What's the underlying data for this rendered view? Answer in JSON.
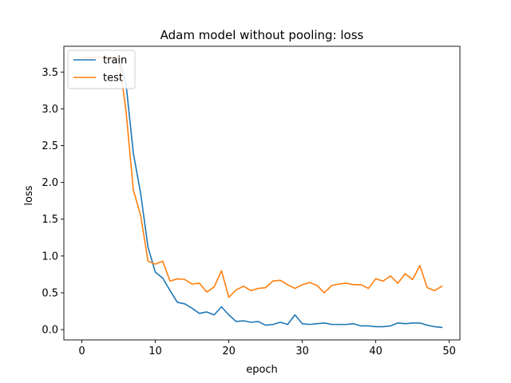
{
  "chart_data": {
    "type": "line",
    "title": "Adam model without pooling: loss",
    "xlabel": "epoch",
    "ylabel": "loss",
    "xlim": [
      -2.45,
      51.45
    ],
    "ylim": [
      -0.14,
      3.85
    ],
    "xticks": [
      0,
      10,
      20,
      30,
      40,
      50
    ],
    "yticks": [
      0.0,
      0.5,
      1.0,
      1.5,
      2.0,
      2.5,
      3.0,
      3.5
    ],
    "ytick_labels": [
      "0.0",
      "0.5",
      "1.0",
      "1.5",
      "2.0",
      "2.5",
      "3.0",
      "3.5"
    ],
    "grid": false,
    "legend": "top-left",
    "x": [
      0,
      1,
      2,
      3,
      4,
      5,
      6,
      7,
      8,
      9,
      10,
      11,
      12,
      13,
      14,
      15,
      16,
      17,
      18,
      19,
      20,
      21,
      22,
      23,
      24,
      25,
      26,
      27,
      28,
      29,
      30,
      31,
      32,
      33,
      34,
      35,
      36,
      37,
      38,
      39,
      40,
      41,
      42,
      43,
      44,
      45,
      46,
      47,
      48,
      49
    ],
    "series": [
      {
        "name": "train",
        "color": "#1f77b4",
        "values": [
          3.7,
          3.7,
          3.7,
          3.7,
          3.7,
          3.7,
          3.35,
          2.4,
          1.85,
          1.12,
          0.78,
          0.7,
          0.53,
          0.37,
          0.35,
          0.29,
          0.22,
          0.24,
          0.2,
          0.31,
          0.2,
          0.11,
          0.12,
          0.1,
          0.11,
          0.06,
          0.07,
          0.1,
          0.07,
          0.2,
          0.08,
          0.07,
          0.08,
          0.09,
          0.07,
          0.07,
          0.07,
          0.08,
          0.05,
          0.05,
          0.04,
          0.04,
          0.05,
          0.09,
          0.08,
          0.09,
          0.09,
          0.06,
          0.04,
          0.03
        ]
      },
      {
        "name": "test",
        "color": "#ff7f0e",
        "values": [
          3.7,
          3.7,
          3.7,
          3.7,
          3.7,
          3.7,
          2.98,
          1.9,
          1.55,
          0.93,
          0.89,
          0.93,
          0.66,
          0.69,
          0.68,
          0.62,
          0.63,
          0.51,
          0.58,
          0.8,
          0.44,
          0.54,
          0.59,
          0.53,
          0.56,
          0.57,
          0.66,
          0.67,
          0.61,
          0.56,
          0.61,
          0.64,
          0.6,
          0.5,
          0.6,
          0.62,
          0.63,
          0.61,
          0.61,
          0.56,
          0.69,
          0.66,
          0.73,
          0.63,
          0.76,
          0.68,
          0.87,
          0.57,
          0.53,
          0.59
        ]
      }
    ]
  }
}
